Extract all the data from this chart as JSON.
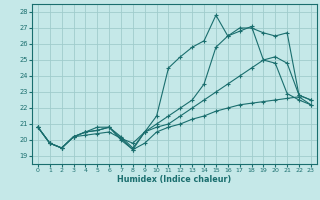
{
  "xlabel": "Humidex (Indice chaleur)",
  "bg_color": "#c5e8e8",
  "grid_color": "#a0cccc",
  "line_color": "#1a6e6e",
  "xlim": [
    -0.5,
    23.5
  ],
  "ylim": [
    18.5,
    28.5
  ],
  "xticks": [
    0,
    1,
    2,
    3,
    4,
    5,
    6,
    7,
    8,
    9,
    10,
    11,
    12,
    13,
    14,
    15,
    16,
    17,
    18,
    19,
    20,
    21,
    22,
    23
  ],
  "yticks": [
    19,
    20,
    21,
    22,
    23,
    24,
    25,
    26,
    27,
    28
  ],
  "series": [
    {
      "x": [
        0,
        1,
        2,
        3,
        4,
        5,
        6,
        7,
        8,
        9,
        10,
        11,
        12,
        13,
        14,
        15,
        16,
        17,
        18,
        19,
        20,
        21,
        22,
        23
      ],
      "y": [
        20.8,
        19.8,
        19.5,
        20.2,
        20.3,
        20.4,
        20.5,
        20.1,
        19.4,
        19.8,
        20.5,
        20.8,
        21.0,
        21.3,
        21.5,
        21.8,
        22.0,
        22.2,
        22.3,
        22.4,
        22.5,
        22.6,
        22.7,
        22.2
      ]
    },
    {
      "x": [
        0,
        1,
        2,
        3,
        4,
        5,
        6,
        7,
        8,
        9,
        10,
        11,
        12,
        13,
        14,
        15,
        16,
        17,
        18,
        19,
        20,
        21,
        22,
        23
      ],
      "y": [
        20.8,
        19.8,
        19.5,
        20.2,
        20.5,
        20.6,
        20.8,
        20.1,
        19.8,
        20.5,
        20.8,
        21.0,
        21.5,
        22.0,
        22.5,
        23.0,
        23.5,
        24.0,
        24.5,
        25.0,
        25.2,
        24.8,
        22.8,
        22.5
      ]
    },
    {
      "x": [
        0,
        1,
        2,
        3,
        4,
        5,
        6,
        7,
        8,
        9,
        10,
        11,
        12,
        13,
        14,
        15,
        16,
        17,
        18,
        19,
        20,
        21,
        22,
        23
      ],
      "y": [
        20.8,
        19.8,
        19.5,
        20.2,
        20.5,
        20.8,
        20.8,
        20.2,
        19.5,
        20.5,
        21.5,
        24.5,
        25.2,
        25.8,
        26.2,
        27.8,
        26.5,
        26.8,
        27.1,
        25.0,
        24.8,
        22.9,
        22.5,
        22.2
      ]
    },
    {
      "x": [
        0,
        1,
        2,
        3,
        4,
        5,
        6,
        7,
        8,
        9,
        10,
        11,
        12,
        13,
        14,
        15,
        16,
        17,
        18,
        19,
        20,
        21,
        22,
        23
      ],
      "y": [
        20.8,
        19.8,
        19.5,
        20.2,
        20.5,
        20.6,
        20.8,
        20.0,
        19.4,
        20.5,
        21.0,
        21.5,
        22.0,
        22.5,
        23.5,
        25.8,
        26.5,
        27.0,
        27.0,
        26.7,
        26.5,
        26.7,
        22.8,
        22.5
      ]
    }
  ]
}
